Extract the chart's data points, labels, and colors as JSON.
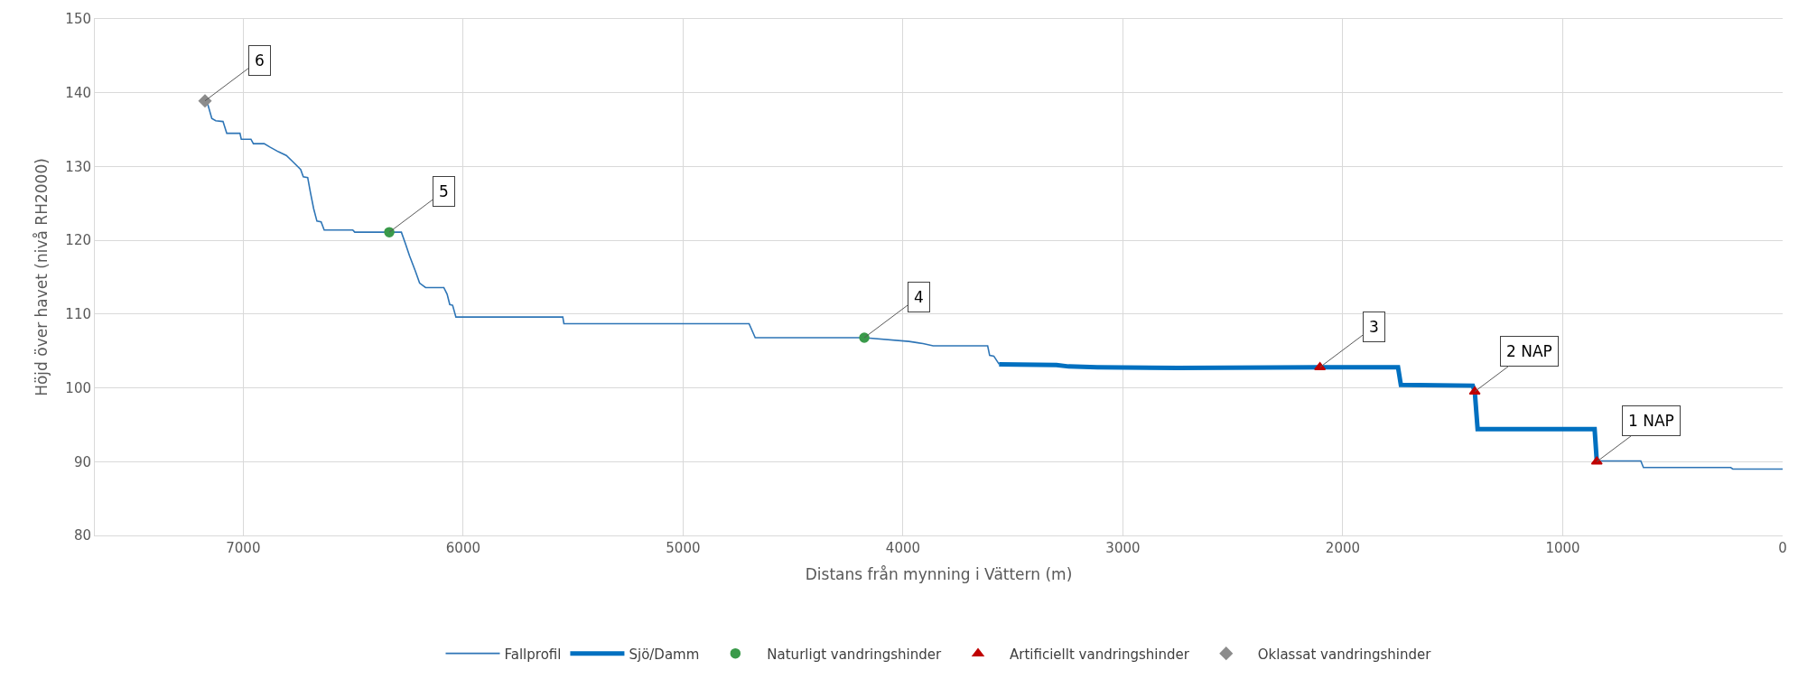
{
  "chart_data": {
    "type": "line",
    "xlabel": "Distans från mynning i Vättern (m)",
    "ylabel": "Höjd över havet (nivå RH2000)",
    "xlim": [
      7675,
      0
    ],
    "xticks": [
      0,
      1000,
      2000,
      3000,
      4000,
      5000,
      6000,
      7000
    ],
    "ylim": [
      80,
      150
    ],
    "yticks": [
      80,
      90,
      100,
      110,
      120,
      130,
      140,
      150
    ],
    "grid": true,
    "legend": "bottom",
    "series": [
      {
        "name": "Fallprofil",
        "color": "#2e75b6",
        "x": [
          7174,
          7161,
          7143,
          7125,
          7092,
          7075,
          7015,
          7009,
          6965,
          6954,
          6905,
          6877,
          6840,
          6804,
          6776,
          6739,
          6727,
          6707,
          6694,
          6680,
          6665,
          6646,
          6632,
          6502,
          6493,
          6336,
          6281,
          6262,
          6244,
          6217,
          6198,
          6171,
          6088,
          6073,
          6061,
          6048,
          6033,
          5547,
          5542,
          4700,
          4672,
          4176,
          3973,
          3909,
          3863,
          3615,
          3606,
          3587,
          3563,
          null,
          845,
          645,
          633,
          236,
          227,
          0
        ],
        "values": [
          138.9,
          138.4,
          136.5,
          136.2,
          136.1,
          134.5,
          134.5,
          133.7,
          133.7,
          133.1,
          133.1,
          132.6,
          132.0,
          131.5,
          130.7,
          129.6,
          128.6,
          128.5,
          126.4,
          124.3,
          122.6,
          122.5,
          121.4,
          121.4,
          121.1,
          121.1,
          121.1,
          119.5,
          117.9,
          115.8,
          114.2,
          113.6,
          113.6,
          112.7,
          111.3,
          111.2,
          109.6,
          109.6,
          108.7,
          108.7,
          106.8,
          106.8,
          106.3,
          106.0,
          105.7,
          105.7,
          104.4,
          104.3,
          103.2,
          null,
          90.1,
          90.1,
          89.2,
          89.2,
          89.0,
          89.0
        ]
      },
      {
        "name": "Sjö/Damm",
        "color": "#0070c0",
        "x": [
          3563,
          3302,
          3247,
          3118,
          2750,
          2104,
          1749,
          1736,
          1409,
          1400,
          1387,
          855,
          845
        ],
        "values": [
          103.2,
          103.1,
          102.9,
          102.8,
          102.7,
          102.8,
          102.8,
          100.4,
          100.3,
          99.5,
          94.4,
          94.4,
          90.0
        ]
      },
      {
        "name": "Naturligt vandringshinder",
        "type": "scatter",
        "marker": "circle",
        "color": "#3a9a4a",
        "x": [
          6336,
          4176
        ],
        "values": [
          121.1,
          106.8
        ]
      },
      {
        "name": "Artificiellt vandringshinder",
        "type": "scatter",
        "marker": "triangle",
        "color": "#c00000",
        "x": [
          2104,
          1400,
          845
        ],
        "values": [
          102.8,
          99.5,
          90.0
        ]
      },
      {
        "name": "Oklassat vandringshinder",
        "type": "scatter",
        "marker": "diamond",
        "color": "#8c8c8c",
        "x": [
          7174
        ],
        "values": [
          138.9
        ]
      }
    ],
    "annotations": [
      {
        "text": "6",
        "x": 7174,
        "y": 138.9
      },
      {
        "text": "5",
        "x": 6336,
        "y": 121.1
      },
      {
        "text": "4",
        "x": 4176,
        "y": 106.8
      },
      {
        "text": "3",
        "x": 2104,
        "y": 102.8
      },
      {
        "text": "2 NAP",
        "x": 1400,
        "y": 99.5
      },
      {
        "text": "1 NAP",
        "x": 845,
        "y": 90.0
      }
    ]
  }
}
